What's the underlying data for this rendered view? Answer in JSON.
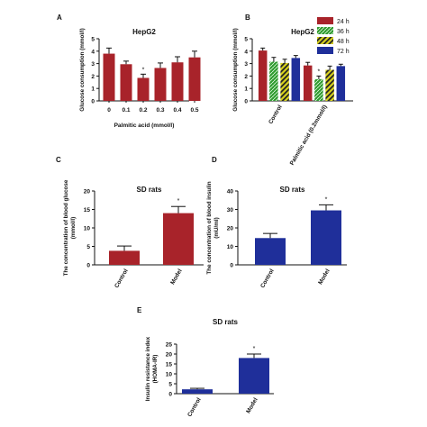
{
  "colors": {
    "red": "#a8232a",
    "green": "#2f9a2f",
    "yellow": "#d8d21e",
    "blue": "#1f2f9a",
    "axis": "#111111"
  },
  "chart_data": [
    {
      "panel": "A",
      "type": "bar",
      "title": "HepG2",
      "xlabel": "Palmitic acid (mmol/l)",
      "ylabel": "Glucose consumption (mmol/l)",
      "ylim": [
        0,
        5
      ],
      "yticks": [
        "0",
        "1",
        "2",
        "3",
        "4",
        "5"
      ],
      "categories": [
        "0",
        "0.1",
        "0.2",
        "0.3",
        "0.4",
        "0.5"
      ],
      "values": [
        3.8,
        2.95,
        1.85,
        2.65,
        3.1,
        3.5
      ],
      "errors": [
        0.45,
        0.25,
        0.3,
        0.4,
        0.45,
        0.5
      ],
      "annotations": [
        "",
        "",
        "*",
        "",
        "",
        ""
      ],
      "grid": false
    },
    {
      "panel": "B",
      "type": "bar",
      "title": "HepG2",
      "ylabel": "Glucose consumption (mmol/l)",
      "ylim": [
        0,
        5
      ],
      "yticks": [
        "0",
        "1",
        "2",
        "3",
        "4",
        "5"
      ],
      "categories": [
        "Control",
        "Palmitic acid (0.2mmol/l)"
      ],
      "series": [
        {
          "name": "24 h",
          "values": [
            4.05,
            2.85
          ],
          "errors": [
            0.2,
            0.25
          ]
        },
        {
          "name": "36 h",
          "values": [
            3.15,
            1.75
          ],
          "errors": [
            0.35,
            0.25
          ]
        },
        {
          "name": "48 h",
          "values": [
            3.05,
            2.5
          ],
          "errors": [
            0.3,
            0.3
          ]
        },
        {
          "name": "72 h",
          "values": [
            3.45,
            2.8
          ],
          "errors": [
            0.2,
            0.15
          ]
        }
      ],
      "annotations": [
        "",
        "*"
      ],
      "legend": "top-right",
      "grid": false
    },
    {
      "panel": "C",
      "type": "bar",
      "title": "SD rats",
      "ylabel": "The concentration of blood glucose (mmol/l)",
      "ylim": [
        0,
        20
      ],
      "yticks": [
        "0",
        "5",
        "10",
        "15",
        "20"
      ],
      "categories": [
        "Control",
        "Model"
      ],
      "values": [
        3.8,
        14.0
      ],
      "errors": [
        1.3,
        1.8
      ],
      "annotations": [
        "",
        "*"
      ],
      "grid": false
    },
    {
      "panel": "D",
      "type": "bar",
      "title": "SD rats",
      "ylabel": "The concentration of blood insulin (mU/ml)",
      "ylim": [
        0,
        40
      ],
      "yticks": [
        "0",
        "10",
        "20",
        "30",
        "40"
      ],
      "categories": [
        "Control",
        "Model"
      ],
      "values": [
        14.5,
        29.5
      ],
      "errors": [
        2.5,
        3.0
      ],
      "annotations": [
        "",
        "*"
      ],
      "grid": false
    },
    {
      "panel": "E",
      "type": "bar",
      "title": "SD rats",
      "ylabel": "Insulin resistance index (HOMA-IR)",
      "ylim": [
        0,
        25
      ],
      "yticks": [
        "0",
        "5",
        "10",
        "15",
        "20",
        "25"
      ],
      "categories": [
        "Control",
        "Model"
      ],
      "values": [
        2.2,
        18.0
      ],
      "errors": [
        0.5,
        2.0
      ],
      "annotations": [
        "",
        "*"
      ],
      "grid": false
    }
  ]
}
